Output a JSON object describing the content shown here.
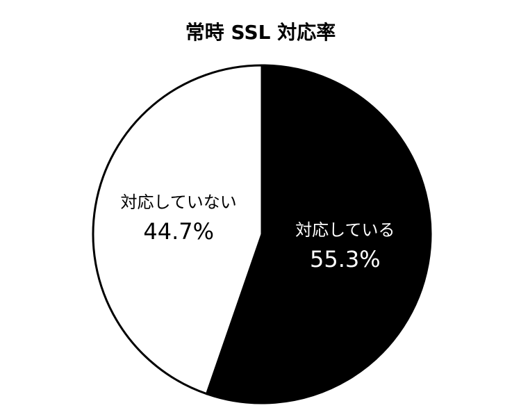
{
  "chart_data": {
    "type": "pie",
    "title": "常時 SSL 対応率",
    "categories": [
      "対応している",
      "対応していない"
    ],
    "values": [
      55.3,
      44.7
    ],
    "value_labels": [
      "55.3%",
      "44.7%"
    ],
    "colors": [
      "#000000",
      "#ffffff"
    ]
  }
}
